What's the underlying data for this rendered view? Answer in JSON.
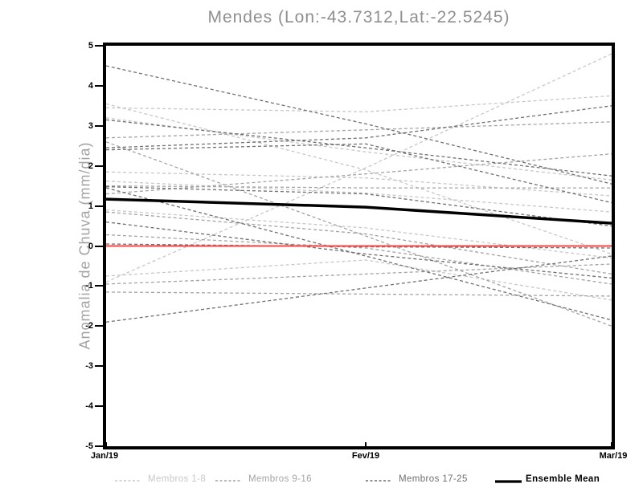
{
  "page": {
    "background": "#ffffff"
  },
  "chart_data": {
    "type": "line",
    "title": "Mendes (Lon:-43.7312,Lat:-22.5245)",
    "ylabel": "Anomalia de Chuva (mm/dia)",
    "ylim": [
      -5,
      5
    ],
    "y_ticks": [
      5,
      4,
      3,
      2,
      1,
      0,
      -1,
      -2,
      -3,
      -4,
      -5
    ],
    "x_tick_labels": [
      "Jan/19",
      "Fev/19",
      "Mar/19"
    ],
    "x_days": [
      0,
      30.3,
      59
    ],
    "x_total_days": 59,
    "grid": false,
    "legend_position": "bottom",
    "line_style_members": "dashed",
    "groups": [
      {
        "name": "Membros 1-8",
        "color": "#c8c8c8"
      },
      {
        "name": "Membros 9-16",
        "color": "#a4a4a4"
      },
      {
        "name": "Membros 17-25",
        "color": "#6f6f6f"
      }
    ],
    "series": [
      {
        "name": "member-01",
        "group": 0,
        "values": [
          3.45,
          3.35,
          3.75
        ]
      },
      {
        "name": "member-02",
        "group": 0,
        "values": [
          3.2,
          2.35,
          1.65
        ]
      },
      {
        "name": "member-03",
        "group": 0,
        "values": [
          3.55,
          1.9,
          -0.2
        ]
      },
      {
        "name": "member-04",
        "group": 0,
        "values": [
          1.85,
          1.7,
          1.25
        ]
      },
      {
        "name": "member-05",
        "group": 0,
        "values": [
          1.62,
          1.32,
          0.85
        ]
      },
      {
        "name": "member-06",
        "group": 0,
        "values": [
          -0.9,
          1.95,
          4.8
        ]
      },
      {
        "name": "member-07",
        "group": 0,
        "values": [
          0.9,
          0.45,
          -0.3
        ]
      },
      {
        "name": "member-08",
        "group": 0,
        "values": [
          -0.75,
          -0.35,
          -1.35
        ]
      },
      {
        "name": "member-09",
        "group": 1,
        "values": [
          1.3,
          1.8,
          2.3
        ]
      },
      {
        "name": "member-10",
        "group": 1,
        "values": [
          2.6,
          0.25,
          -2.0
        ]
      },
      {
        "name": "member-11",
        "group": 1,
        "values": [
          1.5,
          1.45,
          1.45
        ]
      },
      {
        "name": "member-12",
        "group": 1,
        "values": [
          0.85,
          0.3,
          -0.7
        ]
      },
      {
        "name": "member-13",
        "group": 1,
        "values": [
          0.28,
          -0.05,
          -0.95
        ]
      },
      {
        "name": "member-14",
        "group": 1,
        "values": [
          -0.95,
          -0.7,
          -0.45
        ]
      },
      {
        "name": "member-15",
        "group": 1,
        "values": [
          -1.15,
          -1.2,
          -1.25
        ]
      },
      {
        "name": "member-16",
        "group": 1,
        "values": [
          2.7,
          2.9,
          3.1
        ]
      },
      {
        "name": "member-17",
        "group": 2,
        "values": [
          4.5,
          3.05,
          1.55
        ]
      },
      {
        "name": "member-18",
        "group": 2,
        "values": [
          2.45,
          2.7,
          3.5
        ]
      },
      {
        "name": "member-19",
        "group": 2,
        "values": [
          3.15,
          2.45,
          1.75
        ]
      },
      {
        "name": "member-20",
        "group": 2,
        "values": [
          2.4,
          2.55,
          1.08
        ]
      },
      {
        "name": "member-21",
        "group": 2,
        "values": [
          1.45,
          -0.25,
          -1.85
        ]
      },
      {
        "name": "member-22",
        "group": 2,
        "values": [
          1.48,
          1.3,
          0.5
        ]
      },
      {
        "name": "member-23",
        "group": 2,
        "values": [
          0.05,
          -0.02,
          -0.05
        ]
      },
      {
        "name": "member-24",
        "group": 2,
        "values": [
          -1.9,
          -1.05,
          -0.25
        ]
      },
      {
        "name": "member-25",
        "group": 2,
        "values": [
          0.6,
          -0.2,
          -0.8
        ]
      }
    ],
    "zero_line": {
      "color": "#fa4444",
      "values": [
        0,
        0,
        0
      ]
    },
    "ensemble_mean": {
      "name": "Ensemble Mean",
      "color": "#000000",
      "values": [
        1.17,
        0.97,
        0.57
      ]
    }
  },
  "legend": {
    "items": [
      {
        "label": "Membros 1-8"
      },
      {
        "label": "Membros 9-16"
      },
      {
        "label": "Membros 17-25"
      },
      {
        "label": "Ensemble Mean"
      }
    ]
  }
}
